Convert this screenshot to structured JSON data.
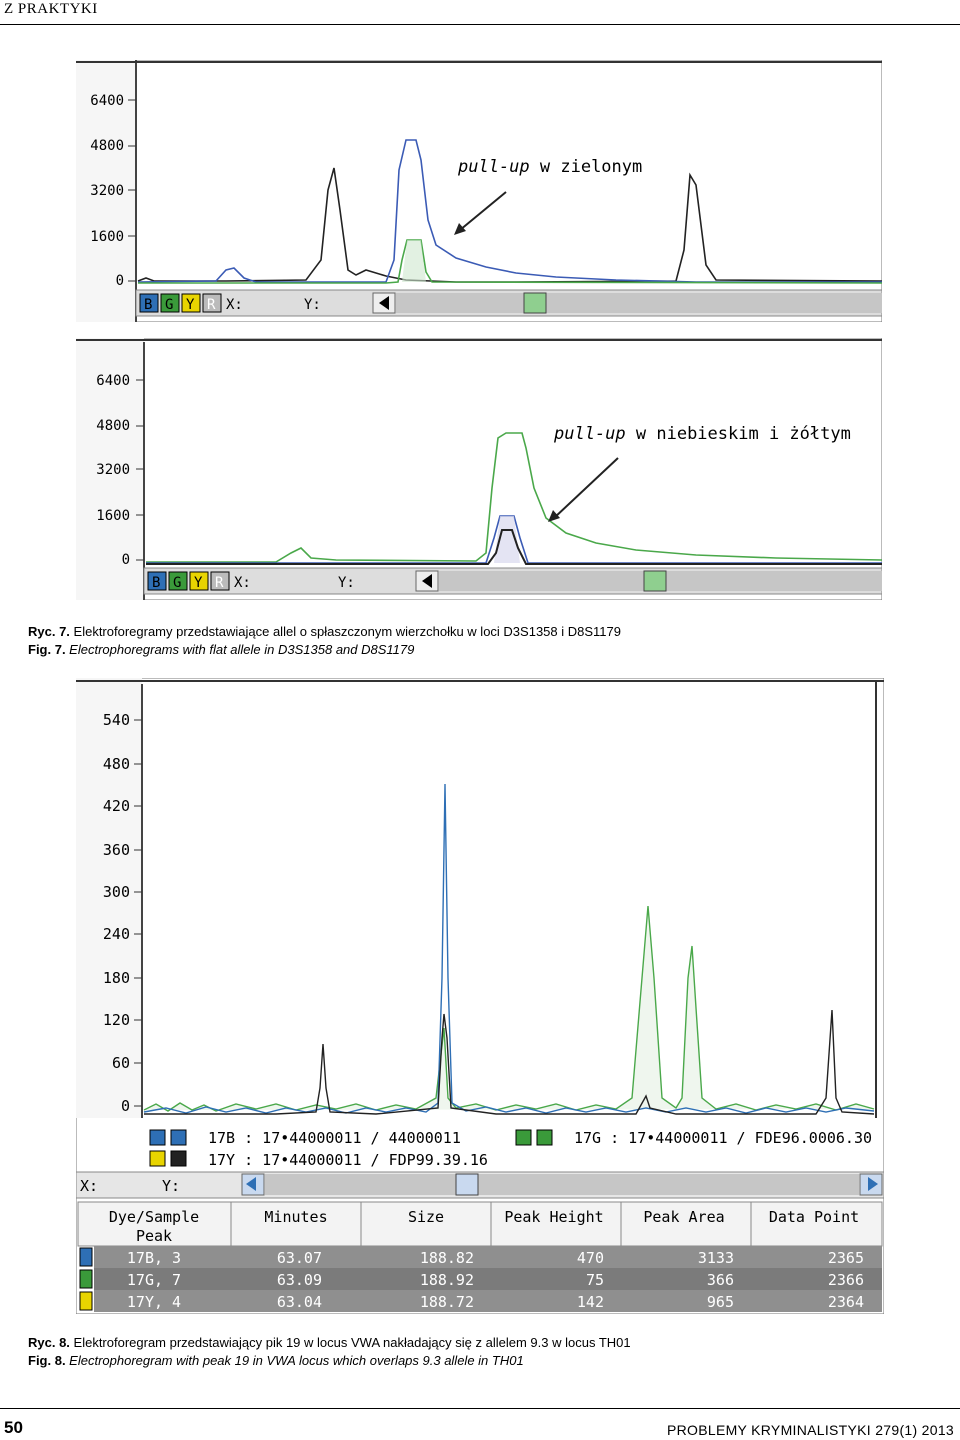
{
  "header": {
    "section": "Z PRAKTYKI"
  },
  "fig7": {
    "panels": [
      {
        "annotation_italic": "pull-up",
        "annotation_rest": " w zielonym",
        "y_ticks": [
          "6400",
          "4800",
          "3200",
          "1600",
          "0"
        ],
        "toolbar": {
          "b": "B",
          "g": "G",
          "y": "Y",
          "r": "R",
          "x_label": "X:",
          "y_label": "Y:"
        }
      },
      {
        "annotation_italic": "pull-up",
        "annotation_rest": " w niebieskim i żółtym",
        "y_ticks": [
          "6400",
          "4800",
          "3200",
          "1600",
          "0"
        ],
        "toolbar": {
          "b": "B",
          "g": "G",
          "y": "Y",
          "r": "R",
          "x_label": "X:",
          "y_label": "Y:"
        }
      }
    ],
    "caption_pl_label": "Ryc. 7.",
    "caption_pl_text": " Elektroforegramy przedstawiające allel o spłaszczonym wierzchołku w loci D3S1358 i D8S1179",
    "caption_en_label": "Fig. 7.",
    "caption_en_text": " Electrophoregrams with flat allele in D3S1358 and D8S1179"
  },
  "fig8": {
    "y_ticks": [
      "540",
      "480",
      "420",
      "360",
      "300",
      "240",
      "180",
      "120",
      "60",
      "0"
    ],
    "legend": {
      "row1_left": "17B : 17•44000011 / 44000011",
      "row2_left": "17Y : 17•44000011 / FDP99.39.16",
      "row1_right": "17G : 17•44000011 / FDE96.0006.30"
    },
    "toolbar": {
      "x_label": "X:",
      "y_label": "Y:"
    },
    "table": {
      "headers": [
        "Dye/Sample",
        "Minutes",
        "Size",
        "Peak Height",
        "Peak Area",
        "Data Point"
      ],
      "subheader": "Peak",
      "rows": [
        {
          "dye": "17B, 3",
          "minutes": "63.07",
          "size": "188.82",
          "height": "470",
          "area": "3133",
          "point": "2365",
          "color": "#2e6fb5"
        },
        {
          "dye": "17G, 7",
          "minutes": "63.09",
          "size": "188.92",
          "height": "75",
          "area": "366",
          "point": "2366",
          "color": "#3a9a3a"
        },
        {
          "dye": "17Y, 4",
          "minutes": "63.04",
          "size": "188.72",
          "height": "142",
          "area": "965",
          "point": "2364",
          "color": "#e8d400"
        }
      ]
    },
    "caption_pl_label": "Ryc. 8.",
    "caption_pl_text": " Elektroforegram przedstawiający pik 19 w locus VWA nakładający się z allelem 9.3 w locus TH01",
    "caption_en_label": "Fig. 8.",
    "caption_en_text": " Electrophoregram with peak 19 in VWA locus which overlaps 9.3 allele in TH01"
  },
  "footer": {
    "page_number": "50",
    "journal": "PROBLEMY KRYMINALISTYKI 279(1) 2013"
  }
}
